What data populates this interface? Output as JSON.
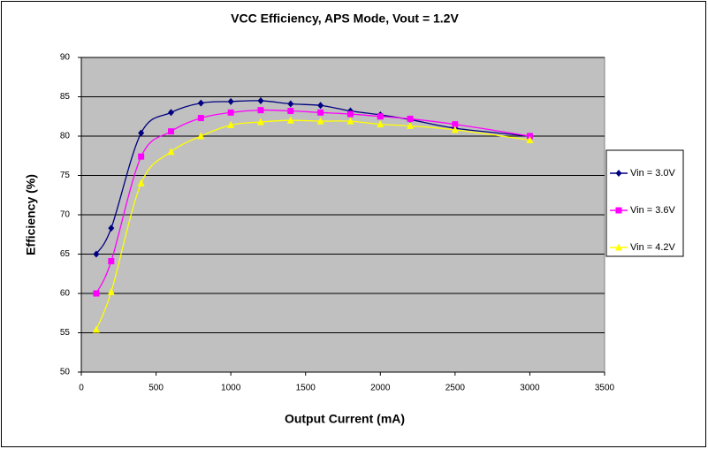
{
  "chart_data": {
    "type": "scatter",
    "title": "VCC Efficiency, APS Mode, Vout = 1.2V",
    "x_label": "Output Current (mA)",
    "y_label": "Efficiency (%)",
    "x": [
      100,
      200,
      400,
      600,
      800,
      1000,
      1200,
      1400,
      1600,
      1800,
      2000,
      2200,
      2500,
      3000
    ],
    "series": [
      {
        "name": "Vin = 3.0V",
        "color": "#000080",
        "marker": "diamond",
        "values": [
          65,
          68.3,
          80.4,
          83,
          84.2,
          84.4,
          84.5,
          84.1,
          83.9,
          83.2,
          82.7,
          82.1,
          81,
          80
        ]
      },
      {
        "name": "Vin = 3.6V",
        "color": "#ff00ff",
        "marker": "square",
        "values": [
          60,
          64.1,
          77.4,
          80.6,
          82.3,
          83,
          83.3,
          83.2,
          83,
          82.8,
          82.5,
          82.2,
          81.5,
          80
        ]
      },
      {
        "name": "Vin = 4.2V",
        "color": "#ffff00",
        "marker": "triangle",
        "values": [
          55.4,
          60.2,
          74,
          78,
          80,
          81.4,
          81.8,
          82,
          81.9,
          81.9,
          81.5,
          81.3,
          80.8,
          79.5
        ]
      }
    ],
    "xlim": [
      0,
      3500
    ],
    "xticks": [
      0,
      500,
      1000,
      1500,
      2000,
      2500,
      3000,
      3500
    ],
    "ylim": [
      50,
      90
    ],
    "yticks": [
      50,
      55,
      60,
      65,
      70,
      75,
      80,
      85,
      90
    ],
    "grid": true,
    "smooth": true,
    "plot_background": "#c0c0c0",
    "legend": "right"
  }
}
